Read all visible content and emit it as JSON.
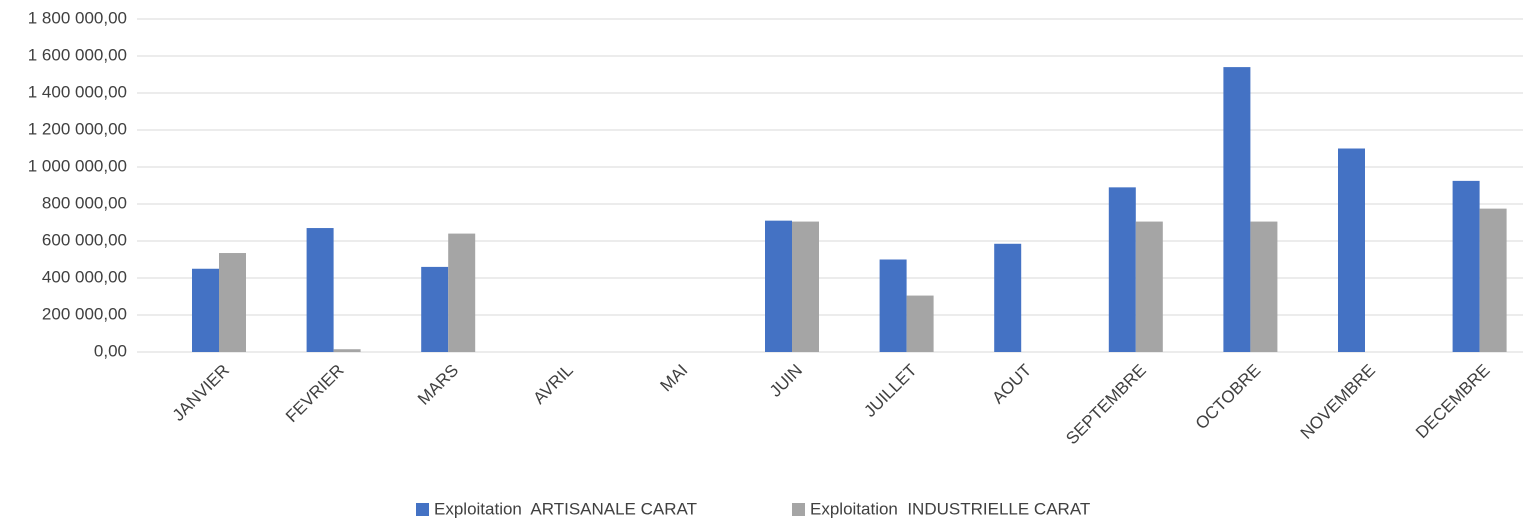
{
  "chart_data": {
    "type": "bar",
    "categories": [
      "JANVIER",
      "FEVRIER",
      "MARS",
      "AVRIL",
      "MAI",
      "JUIN",
      "JUILLET",
      "AOUT",
      "SEPTEMBRE",
      "OCTOBRE",
      "NOVEMBRE",
      "DECEMBRE"
    ],
    "series": [
      {
        "name": "Exploitation  ARTISANALE CARAT",
        "color": "#4472c4",
        "values": [
          450000,
          670000,
          460000,
          0,
          0,
          710000,
          500000,
          585000,
          890000,
          1540000,
          1100000,
          925000
        ]
      },
      {
        "name": "Exploitation  INDUSTRIELLE CARAT",
        "color": "#a5a5a5",
        "values": [
          535000,
          15000,
          640000,
          0,
          0,
          705000,
          305000,
          0,
          705000,
          705000,
          0,
          775000
        ]
      }
    ],
    "ylim": [
      0,
      1800000
    ],
    "yticks": [
      {
        "value": 0,
        "label": "0,00"
      },
      {
        "value": 200000,
        "label": "200 000,00"
      },
      {
        "value": 400000,
        "label": "400 000,00"
      },
      {
        "value": 600000,
        "label": "600 000,00"
      },
      {
        "value": 800000,
        "label": "800 000,00"
      },
      {
        "value": 1000000,
        "label": "1 000 000,00"
      },
      {
        "value": 1200000,
        "label": "1 200 000,00"
      },
      {
        "value": 1400000,
        "label": "1 400 000,00"
      },
      {
        "value": 1600000,
        "label": "1 600 000,00"
      },
      {
        "value": 1800000,
        "label": "1 800 000,00"
      }
    ],
    "grid": true,
    "legend": "bottom"
  }
}
